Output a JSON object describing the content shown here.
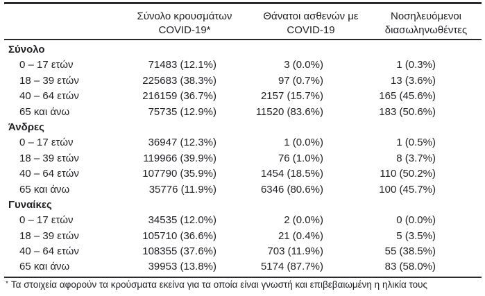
{
  "colors": {
    "background": "#ffffff",
    "text": "#1f1f23",
    "rule": "#2a2a2e"
  },
  "table": {
    "columns": [
      {
        "id": "cases",
        "line1": "Σύνολο κρουσμάτων",
        "line2": "COVID-19*"
      },
      {
        "id": "deaths",
        "line1": "Θάνατοι ασθενών με",
        "line2": "COVID-19"
      },
      {
        "id": "intubated",
        "line1": "Νοσηλευόμενοι",
        "line2": "διασωληνωθέντες"
      }
    ],
    "sections": [
      {
        "label": "Σύνολο",
        "rows": [
          {
            "label": "0 – 17 ετών",
            "cases": "71483 (12.1%)",
            "deaths": "3 (0.0%)",
            "intubated": "1 (0.3%)"
          },
          {
            "label": "18 – 39 ετών",
            "cases": "225683 (38.3%)",
            "deaths": "97 (0.7%)",
            "intubated": "13 (3.6%)"
          },
          {
            "label": "40 – 64 ετών",
            "cases": "216159 (36.7%)",
            "deaths": "2157 (15.7%)",
            "intubated": "165 (45.6%)"
          },
          {
            "label": "65 και άνω",
            "cases": "75735 (12.9%)",
            "deaths": "11520 (83.6%)",
            "intubated": "183 (50.6%)"
          }
        ]
      },
      {
        "label": "Άνδρες",
        "rows": [
          {
            "label": "0 – 17 ετών",
            "cases": "36947 (12.3%)",
            "deaths": "1 (0.0%)",
            "intubated": "1 (0.5%)"
          },
          {
            "label": "18 – 39 ετών",
            "cases": "119966 (39.9%)",
            "deaths": "76 (1.0%)",
            "intubated": "8 (3.7%)"
          },
          {
            "label": "40 – 64 ετών",
            "cases": "107790 (35.9%)",
            "deaths": "1454 (18.5%)",
            "intubated": "110 (50.2%)"
          },
          {
            "label": "65 και άνω",
            "cases": "35776 (11.9%)",
            "deaths": "6346 (80.6%)",
            "intubated": "100 (45.7%)"
          }
        ]
      },
      {
        "label": "Γυναίκες",
        "rows": [
          {
            "label": "0 – 17 ετών",
            "cases": "34535 (12.0%)",
            "deaths": "2 (0.0%)",
            "intubated": "0 (0.0%)"
          },
          {
            "label": "18 – 39 ετών",
            "cases": "105710 (36.6%)",
            "deaths": "21 (0.4%)",
            "intubated": "5 (3.5%)"
          },
          {
            "label": "40 – 64 ετών",
            "cases": "108355 (37.6%)",
            "deaths": "703 (11.9%)",
            "intubated": "55 (38.5%)"
          },
          {
            "label": "65 και άνω",
            "cases": "39953 (13.8%)",
            "deaths": "5174 (87.7%)",
            "intubated": "83 (58.0%)"
          }
        ]
      }
    ]
  },
  "footnote": {
    "marker": "*",
    "text": "Τα στοιχεία αφορούν τα κρούσματα εκείνα για τα οποία είναι γνωστή και επιβεβαιωμένη η ηλικία τους"
  }
}
